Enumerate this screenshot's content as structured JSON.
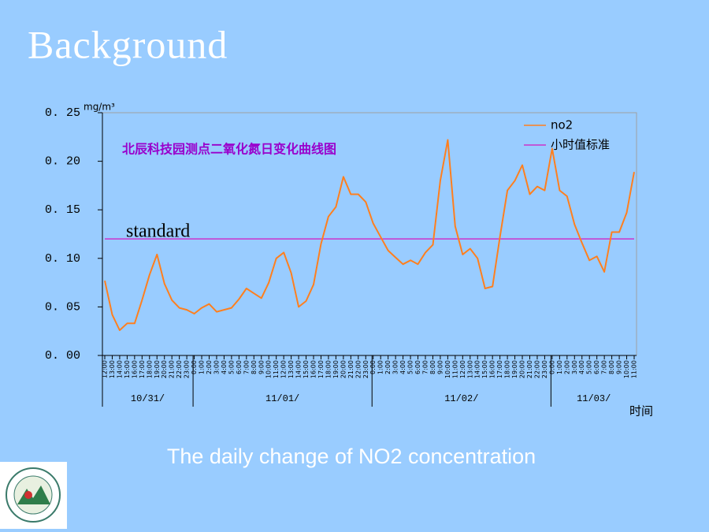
{
  "heading": "Background",
  "caption": "The daily change of NO2 concentration",
  "chart_data": {
    "type": "line",
    "title": "北辰科技园测点二氧化氮日变化曲线图",
    "y_unit": "mg/m³",
    "x_label": "时间",
    "annotation": "standard",
    "categories": [
      "12:00",
      "13:00",
      "14:00",
      "15:00",
      "16:00",
      "17:00",
      "18:00",
      "19:00",
      "20:00",
      "21:00",
      "22:00",
      "23:00",
      "0:00",
      "1:00",
      "2:00",
      "3:00",
      "4:00",
      "5:00",
      "6:00",
      "7:00",
      "8:00",
      "9:00",
      "10:00",
      "11:00",
      "12:00",
      "13:00",
      "14:00",
      "15:00",
      "16:00",
      "17:00",
      "18:00",
      "19:00",
      "20:00",
      "21:00",
      "22:00",
      "23:00",
      "0:00",
      "1:00",
      "2:00",
      "3:00",
      "4:00",
      "5:00",
      "6:00",
      "7:00",
      "8:00",
      "9:00",
      "10:00",
      "11:00",
      "12:00",
      "13:00",
      "14:00",
      "15:00",
      "16:00",
      "17:00",
      "18:00",
      "19:00",
      "20:00",
      "21:00",
      "22:00",
      "23:00",
      "0:00",
      "1:00",
      "2:00",
      "3:00",
      "4:00",
      "5:00",
      "6:00",
      "7:00",
      "8:00",
      "9:00",
      "10:00",
      "11:00"
    ],
    "date_groups": [
      "10/31/",
      "11/01/",
      "11/02/",
      "11/03/"
    ],
    "series": [
      {
        "name": "no2",
        "color": "#ff7f1e",
        "values": [
          0.077,
          0.042,
          0.026,
          0.033,
          0.033,
          0.057,
          0.083,
          0.104,
          0.074,
          0.057,
          0.049,
          0.047,
          0.043,
          0.049,
          0.053,
          0.045,
          0.047,
          0.049,
          0.058,
          0.069,
          0.064,
          0.059,
          0.075,
          0.1,
          0.106,
          0.085,
          0.05,
          0.056,
          0.073,
          0.115,
          0.143,
          0.153,
          0.184,
          0.166,
          0.166,
          0.158,
          0.136,
          0.122,
          0.108,
          0.101,
          0.094,
          0.098,
          0.094,
          0.106,
          0.114,
          0.18,
          0.222,
          0.133,
          0.104,
          0.11,
          0.1,
          0.069,
          0.071,
          0.122,
          0.17,
          0.18,
          0.196,
          0.166,
          0.174,
          0.17,
          0.213,
          0.17,
          0.164,
          0.135,
          0.116,
          0.098,
          0.102,
          0.086,
          0.127,
          0.127,
          0.147,
          0.189
        ]
      }
    ],
    "reference_line": {
      "name": "小时值标准",
      "value": 0.12,
      "color": "#cc33cc"
    },
    "ylim": [
      0,
      0.25
    ],
    "yticks": [
      {
        "value": 0,
        "label": "0. 00"
      },
      {
        "value": 0.05,
        "label": "0. 05"
      },
      {
        "value": 0.1,
        "label": "0. 10"
      },
      {
        "value": 0.15,
        "label": "0. 15"
      },
      {
        "value": 0.2,
        "label": "0. 20"
      },
      {
        "value": 0.25,
        "label": "0. 25"
      }
    ]
  }
}
